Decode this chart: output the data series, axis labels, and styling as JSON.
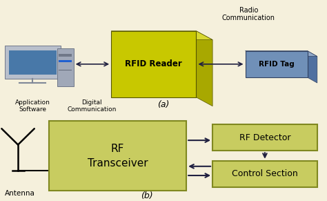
{
  "fig_w": 4.74,
  "fig_h": 2.91,
  "dpi": 100,
  "bg_color": "#f5f0dc",
  "rfid_reader_front": "#c8c800",
  "rfid_reader_right": "#a8a800",
  "rfid_reader_top": "#d8d830",
  "rfid_tag_front": "#7090b8",
  "rfid_tag_right": "#5070a0",
  "rfid_tag_top": "#90a8c8",
  "block_fill": "#c8cc60",
  "block_edge": "#808820",
  "arrow_color": "#202040",
  "label_a": "(a)",
  "label_b": "(b)",
  "radio_comm": "Radio\nCommunication",
  "rfid_reader_label": "RFID Reader",
  "rfid_tag_label": "RFID Tag",
  "app_sw_label": "Application\nSoftware",
  "digital_comm_label": "Digital\nCommunication",
  "antenna_label": "Antenna",
  "rf_transceiver_label": "RF\nTransceiver",
  "rf_detector_label": "RF Detector",
  "ctrl_section_label": "Control Section"
}
